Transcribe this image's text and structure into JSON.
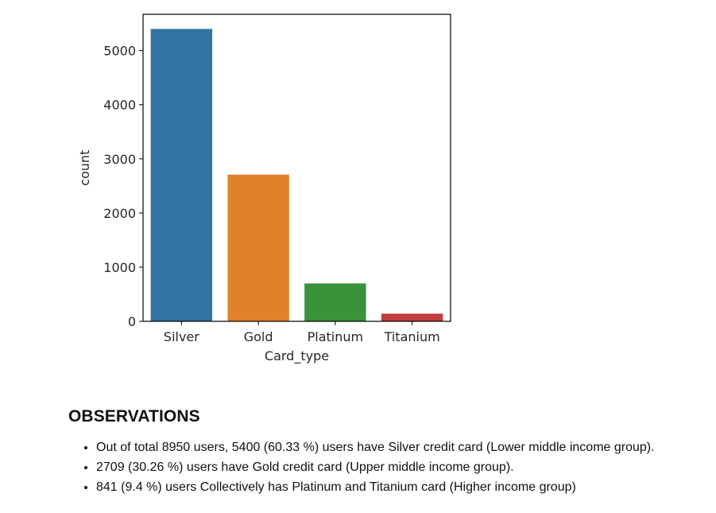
{
  "chart_data": {
    "type": "bar",
    "categories": [
      "Silver",
      "Gold",
      "Platinum",
      "Titanium"
    ],
    "values": [
      5400,
      2709,
      700,
      141
    ],
    "colors": [
      "#3274a1",
      "#e1812c",
      "#3a923a",
      "#c03d3e"
    ],
    "xlabel": "Card_type",
    "ylabel": "count",
    "ylim": [
      0,
      5670
    ],
    "yticks": [
      0,
      1000,
      2000,
      3000,
      4000,
      5000
    ],
    "grid": false
  },
  "observations": {
    "heading": "OBSERVATIONS",
    "items": [
      "Out of total 8950 users, 5400 (60.33 %) users have Silver credit card (Lower middle income group).",
      "2709 (30.26 %) users have Gold credit card (Upper middle income group).",
      "841 (9.4 %) users Collectively has Platinum and Titanium card (Higher income group)"
    ]
  }
}
